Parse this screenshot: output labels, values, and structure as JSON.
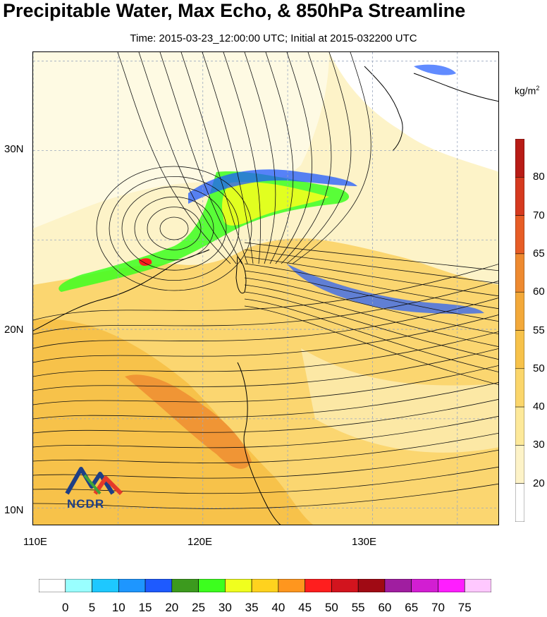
{
  "chart_data": {
    "type": "heatmap",
    "title": "Precipitable Water, Max Echo, & 850hPa Streamline",
    "subtitle": "Time: 2015-03-23_12:00:00 UTC; Initial at 2015-032200 UTC",
    "x_axis": {
      "ticks": [
        "110E",
        "120E",
        "130E"
      ],
      "range": [
        110,
        137.5
      ]
    },
    "y_axis": {
      "ticks": [
        "30N",
        "20N",
        "10N"
      ],
      "range": [
        9,
        35.5
      ]
    },
    "precipitable_water_colorbar": {
      "unit": "kg/m",
      "unit_exponent": "2",
      "labels": [
        "20",
        "30",
        "40",
        "50",
        "55",
        "60",
        "65",
        "70",
        "80"
      ],
      "colors": [
        "#ffffff",
        "#fdf3c8",
        "#fde99a",
        "#fbd66b",
        "#f7c24a",
        "#f3a93a",
        "#ee8a30",
        "#e75d26",
        "#d63a1f",
        "#b81c16"
      ]
    },
    "max_echo_colorbar": {
      "labels": [
        "0",
        "5",
        "10",
        "15",
        "20",
        "25",
        "30",
        "35",
        "40",
        "45",
        "50",
        "55",
        "60",
        "65",
        "70",
        "75"
      ],
      "colors": [
        "#ffffff",
        "#99ffff",
        "#1ec8ff",
        "#1e96ff",
        "#1e5aff",
        "#3c9a1e",
        "#3cff1e",
        "#f0ff1e",
        "#ffd21e",
        "#ff961e",
        "#ff1e1e",
        "#d2141e",
        "#a00a14",
        "#a01ea0",
        "#d21ed2",
        "#ff1eff",
        "#ffc8ff"
      ]
    },
    "logo_text": "NCDR"
  }
}
